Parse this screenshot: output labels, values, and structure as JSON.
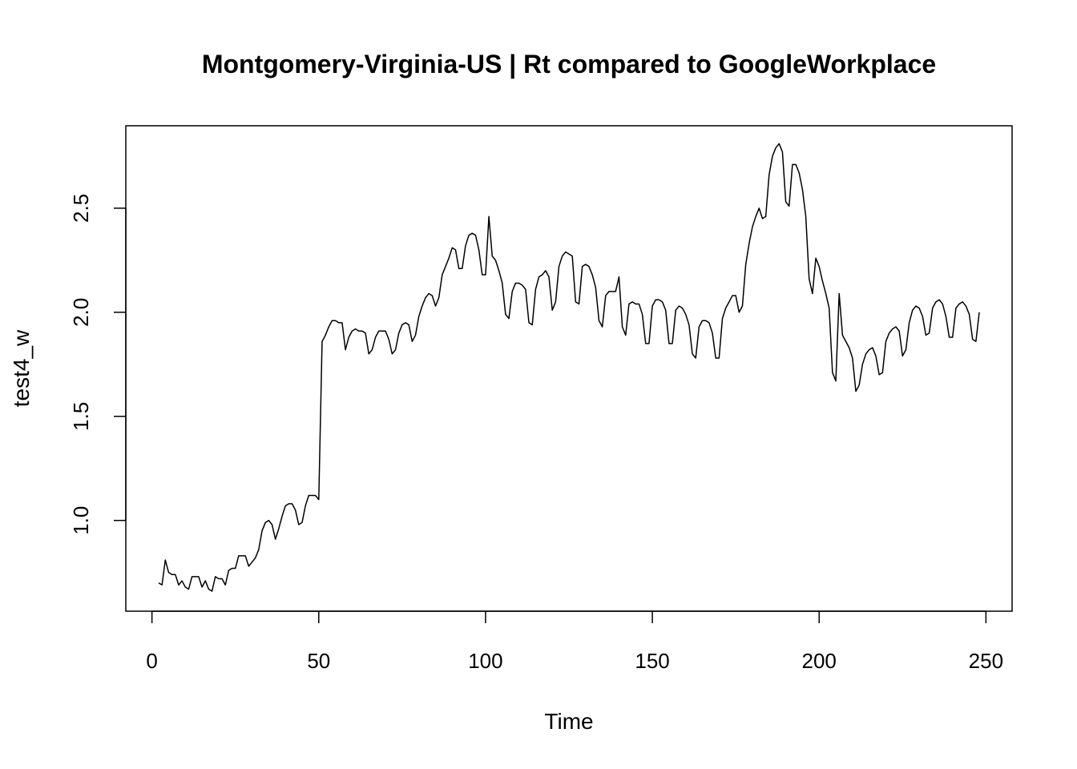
{
  "chart_data": {
    "type": "line",
    "title": "Montgomery-Virginia-US | Rt compared to GoogleWorkplace",
    "x_label": "Time",
    "y_label": "test4_w",
    "xlim": [
      -7.84,
      257.84
    ],
    "ylim": [
      0.564,
      2.896
    ],
    "xticks": [
      0,
      50,
      100,
      150,
      200,
      250
    ],
    "yticks": [
      {
        "value": 1,
        "label": "1.0"
      },
      1.5,
      {
        "value": 2,
        "label": "2.0"
      },
      2.5
    ],
    "x": [
      2,
      3,
      4,
      5,
      6,
      7,
      8,
      9,
      10,
      11,
      12,
      13,
      14,
      15,
      16,
      17,
      18,
      19,
      20,
      21,
      22,
      23,
      24,
      25,
      26,
      27,
      28,
      29,
      30,
      31,
      32,
      33,
      34,
      35,
      36,
      37,
      38,
      39,
      40,
      41,
      42,
      43,
      44,
      45,
      46,
      47,
      48,
      49,
      50,
      51,
      52,
      53,
      54,
      55,
      56,
      57,
      58,
      59,
      60,
      61,
      62,
      63,
      64,
      65,
      66,
      67,
      68,
      69,
      70,
      71,
      72,
      73,
      74,
      75,
      76,
      77,
      78,
      79,
      80,
      81,
      82,
      83,
      84,
      85,
      86,
      87,
      88,
      89,
      90,
      91,
      92,
      93,
      94,
      95,
      96,
      97,
      98,
      99,
      100,
      101,
      102,
      103,
      104,
      105,
      106,
      107,
      108,
      109,
      110,
      111,
      112,
      113,
      114,
      115,
      116,
      117,
      118,
      119,
      120,
      121,
      122,
      123,
      124,
      125,
      126,
      127,
      128,
      129,
      130,
      131,
      132,
      133,
      134,
      135,
      136,
      137,
      138,
      139,
      140,
      141,
      142,
      143,
      144,
      145,
      146,
      147,
      148,
      149,
      150,
      151,
      152,
      153,
      154,
      155,
      156,
      157,
      158,
      159,
      160,
      161,
      162,
      163,
      164,
      165,
      166,
      167,
      168,
      169,
      170,
      171,
      172,
      173,
      174,
      175,
      176,
      177,
      178,
      179,
      180,
      181,
      182,
      183,
      184,
      185,
      186,
      187,
      188,
      189,
      190,
      191,
      192,
      193,
      194,
      195,
      196,
      197,
      198,
      199,
      200,
      201,
      202,
      203,
      204,
      205,
      206,
      207,
      208,
      209,
      210,
      211,
      212,
      213,
      214,
      215,
      216,
      217,
      218,
      219,
      220,
      221,
      222,
      223,
      224,
      225,
      226,
      227,
      228,
      229,
      230,
      231,
      232,
      233,
      234,
      235,
      236,
      237,
      238,
      239,
      240,
      241,
      242,
      243,
      244,
      245,
      246,
      247,
      248
    ],
    "series": [
      {
        "color": "#000000",
        "values": [
          0.7,
          0.69,
          0.81,
          0.75,
          0.74,
          0.74,
          0.69,
          0.71,
          0.68,
          0.67,
          0.73,
          0.73,
          0.73,
          0.68,
          0.71,
          0.67,
          0.66,
          0.73,
          0.72,
          0.72,
          0.69,
          0.76,
          0.77,
          0.77,
          0.83,
          0.83,
          0.83,
          0.78,
          0.8,
          0.82,
          0.86,
          0.95,
          0.99,
          1.0,
          0.98,
          0.91,
          0.96,
          1.02,
          1.07,
          1.08,
          1.08,
          1.05,
          0.98,
          0.99,
          1.07,
          1.12,
          1.12,
          1.12,
          1.1,
          1.86,
          1.89,
          1.93,
          1.96,
          1.96,
          1.95,
          1.95,
          1.82,
          1.88,
          1.91,
          1.92,
          1.91,
          1.91,
          1.9,
          1.8,
          1.82,
          1.88,
          1.91,
          1.91,
          1.91,
          1.87,
          1.8,
          1.82,
          1.9,
          1.94,
          1.95,
          1.94,
          1.86,
          1.89,
          1.98,
          2.03,
          2.07,
          2.09,
          2.08,
          2.03,
          2.07,
          2.18,
          2.22,
          2.26,
          2.31,
          2.3,
          2.21,
          2.21,
          2.32,
          2.37,
          2.38,
          2.37,
          2.3,
          2.18,
          2.18,
          2.46,
          2.27,
          2.25,
          2.2,
          2.14,
          1.99,
          1.97,
          2.1,
          2.14,
          2.14,
          2.13,
          2.11,
          1.95,
          1.94,
          2.11,
          2.17,
          2.18,
          2.2,
          2.17,
          2.01,
          2.05,
          2.22,
          2.27,
          2.29,
          2.28,
          2.27,
          2.05,
          2.04,
          2.22,
          2.23,
          2.22,
          2.18,
          2.12,
          1.96,
          1.93,
          2.08,
          2.1,
          2.1,
          2.1,
          2.17,
          1.93,
          1.89,
          2.04,
          2.05,
          2.04,
          2.04,
          1.99,
          1.85,
          1.85,
          2.03,
          2.06,
          2.06,
          2.05,
          2.01,
          1.85,
          1.85,
          2.01,
          2.03,
          2.02,
          1.99,
          1.94,
          1.8,
          1.78,
          1.93,
          1.96,
          1.96,
          1.95,
          1.9,
          1.78,
          1.78,
          1.97,
          2.02,
          2.05,
          2.08,
          2.08,
          2.0,
          2.03,
          2.23,
          2.33,
          2.41,
          2.46,
          2.5,
          2.45,
          2.46,
          2.66,
          2.75,
          2.79,
          2.81,
          2.77,
          2.53,
          2.51,
          2.71,
          2.71,
          2.67,
          2.59,
          2.46,
          2.16,
          2.09,
          2.26,
          2.22,
          2.15,
          2.09,
          2.02,
          1.71,
          1.67,
          2.09,
          1.89,
          1.86,
          1.83,
          1.78,
          1.62,
          1.65,
          1.75,
          1.8,
          1.82,
          1.83,
          1.79,
          1.7,
          1.71,
          1.86,
          1.9,
          1.92,
          1.93,
          1.91,
          1.79,
          1.82,
          1.95,
          2.01,
          2.03,
          2.02,
          1.98,
          1.89,
          1.9,
          2.02,
          2.05,
          2.06,
          2.04,
          1.98,
          1.88,
          1.88,
          2.02,
          2.04,
          2.05,
          2.03,
          1.99,
          1.87,
          1.86,
          2.0
        ]
      }
    ]
  }
}
